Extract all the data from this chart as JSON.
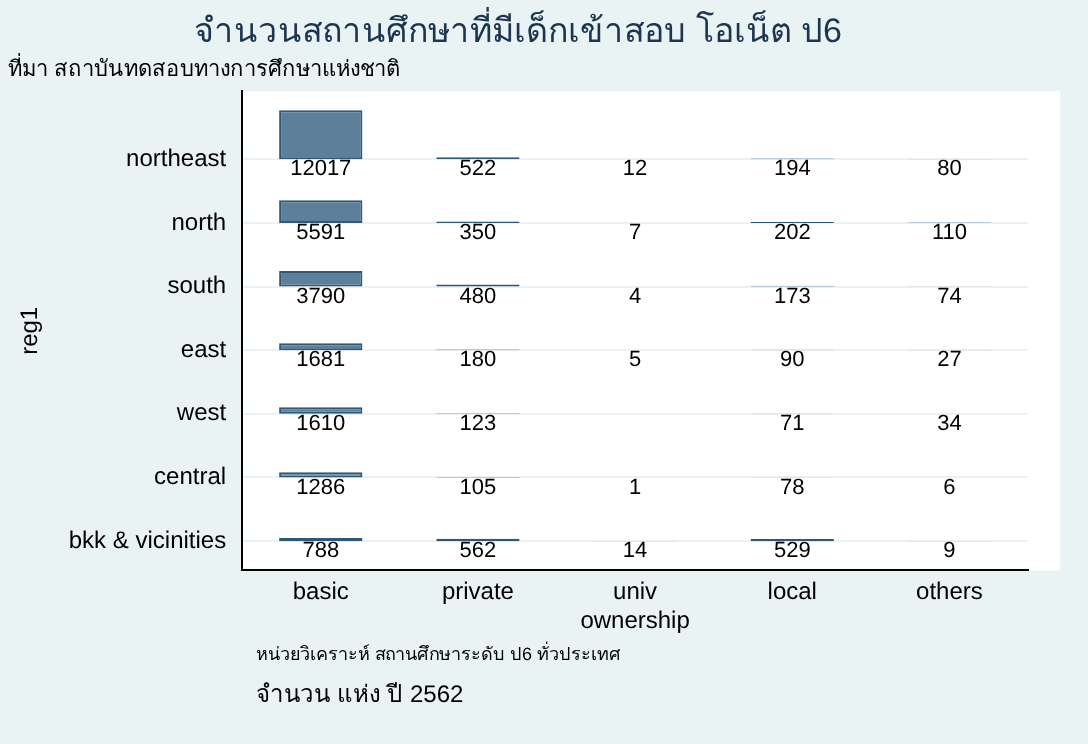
{
  "chart_data": {
    "type": "heatmap",
    "title": "จำนวนสถานศึกษาที่มีเด็กเข้าสอบ โอเน็ต ป6",
    "subtitle": "ที่มา สถาบันทดสอบทางการศึกษาแห่งชาติ",
    "xlabel": "ownership",
    "ylabel": "reg1",
    "categories": [
      "basic",
      "private",
      "univ",
      "local",
      "others"
    ],
    "y_categories": [
      "northeast",
      "north",
      "south",
      "east",
      "west",
      "central",
      "bkk & vicinities"
    ],
    "cells": [
      [
        12017,
        522,
        12,
        194,
        80
      ],
      [
        5591,
        350,
        7,
        202,
        110
      ],
      [
        3790,
        480,
        4,
        173,
        74
      ],
      [
        1681,
        180,
        5,
        90,
        27
      ],
      [
        1610,
        123,
        null,
        71,
        34
      ],
      [
        1286,
        105,
        1,
        78,
        6
      ],
      [
        788,
        562,
        14,
        529,
        9
      ]
    ],
    "color": "#5e7f99",
    "data_labels": true,
    "grid": "y",
    "annotations": [
      "หน่วยวิเคราะห์  สถานศึกษาระดับ ป6 ทั่วประเทศ",
      "จำนวน แห่ง ปี 2562"
    ]
  }
}
